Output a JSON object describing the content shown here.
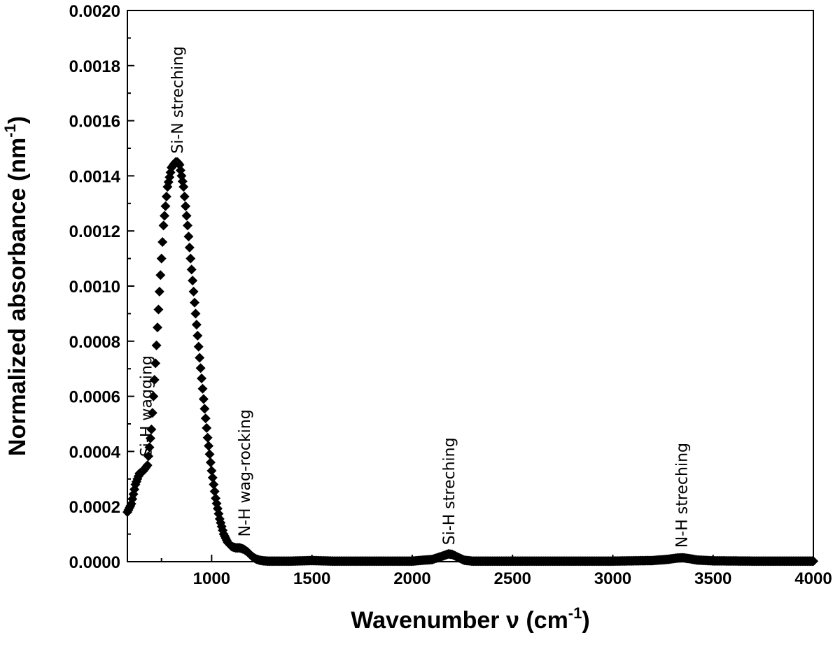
{
  "chart_data": {
    "type": "scatter",
    "title": "",
    "xlabel": {
      "main": "Wavenumber ν (cm",
      "sup": "-1",
      "close": ")"
    },
    "ylabel": {
      "main": "Normalized absorbance (nm",
      "sup": "-1",
      "close": ")"
    },
    "xlim": [
      580,
      4000
    ],
    "ylim": [
      0,
      0.002
    ],
    "x_ticks": [
      1000,
      1500,
      2000,
      2500,
      3000,
      3500,
      4000
    ],
    "x_tick_labels": [
      "1000",
      "1500",
      "2000",
      "2500",
      "3000",
      "3500",
      "4000"
    ],
    "y_ticks": [
      0,
      0.0002,
      0.0004,
      0.0006,
      0.0008,
      0.001,
      0.0012,
      0.0014,
      0.0016,
      0.0018,
      0.002
    ],
    "y_tick_labels": [
      "0.0000",
      "0.0002",
      "0.0004",
      "0.0006",
      "0.0008",
      "0.0010",
      "0.0012",
      "0.0014",
      "0.0016",
      "0.0018",
      "0.0020"
    ],
    "marker": "diamond",
    "color": "#000000",
    "grid": false,
    "legend": "none",
    "series": [
      {
        "x": [
          580,
          600,
          620,
          640,
          660,
          680,
          700,
          720,
          740,
          760,
          780,
          800,
          820,
          830,
          840,
          860,
          880,
          900,
          920,
          940,
          960,
          980,
          1000,
          1020,
          1040,
          1060,
          1080,
          1100,
          1120,
          1140,
          1160,
          1180,
          1200,
          1220,
          1240,
          1260,
          1280,
          1300,
          1400,
          1500,
          1600,
          1800,
          2000,
          2100,
          2150,
          2180,
          2200,
          2230,
          2260,
          2300,
          2500,
          2800,
          3000,
          3200,
          3280,
          3320,
          3350,
          3380,
          3420,
          3500,
          3700,
          4000
        ],
        "y": [
          0.00018,
          0.00021,
          0.00028,
          0.00032,
          0.00033,
          0.00035,
          0.00048,
          0.00072,
          0.00098,
          0.00122,
          0.00136,
          0.00143,
          0.00145,
          0.00145,
          0.00144,
          0.00136,
          0.00122,
          0.00106,
          0.0009,
          0.00074,
          0.00059,
          0.00045,
          0.00033,
          0.00023,
          0.000155,
          0.0001,
          7e-05,
          5.5e-05,
          5e-05,
          5e-05,
          4.5e-05,
          3.5e-05,
          2e-05,
          1e-05,
          5e-06,
          3e-06,
          2e-06,
          2e-06,
          2e-06,
          4e-06,
          2e-06,
          2e-06,
          2e-06,
          8e-06,
          2e-05,
          2.8e-05,
          2.6e-05,
          1.5e-05,
          5e-06,
          2e-06,
          2e-06,
          2e-06,
          2e-06,
          4e-06,
          9e-06,
          1.3e-05,
          1.4e-05,
          1.1e-05,
          6e-06,
          3e-06,
          2e-06,
          2e-06
        ]
      }
    ],
    "annotations": [
      {
        "text": "Si-H wagging",
        "x": 700,
        "y": 0.00036
      },
      {
        "text": "Si-N streching",
        "x": 855,
        "y": 0.00146
      },
      {
        "text": "N-H wag-rocking",
        "x": 1190,
        "y": 7e-05
      },
      {
        "text": "Si-H streching",
        "x": 2210,
        "y": 4e-05
      },
      {
        "text": "N-H streching",
        "x": 3370,
        "y": 3e-05
      }
    ]
  }
}
